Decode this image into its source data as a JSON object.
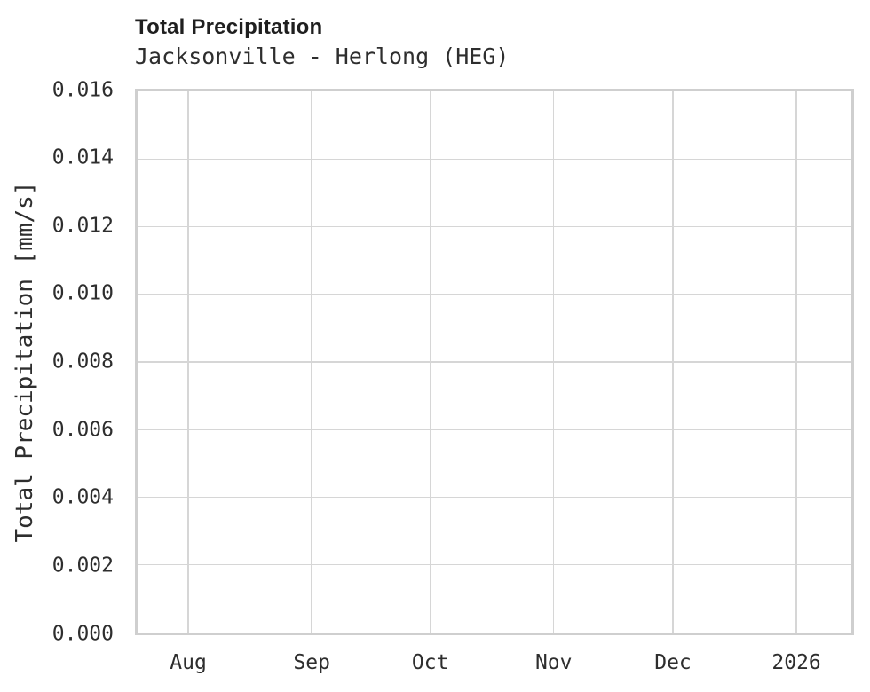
{
  "page": {
    "background": "#ffffff"
  },
  "colors": {
    "grid": "#d6d6d6",
    "axis_border": "#cfcfcf",
    "title_text": "#1f1f1f",
    "text": "#2e2e2e"
  },
  "chart_data": {
    "type": "line",
    "title": "Total Precipitation",
    "subtitle": "Jacksonville - Herlong (HEG)",
    "xlabel": "",
    "ylabel": "Total Precipitation [mm/s]",
    "ylim": [
      0.0,
      0.016
    ],
    "y_tick_step": 0.002,
    "y_ticks": [
      "0.016",
      "0.014",
      "0.012",
      "0.010",
      "0.008",
      "0.006",
      "0.004",
      "0.002",
      "0.000"
    ],
    "x_ticks": [
      {
        "label": "Aug",
        "pos": 0.071
      },
      {
        "label": "Sep",
        "pos": 0.244
      },
      {
        "label": "Oct",
        "pos": 0.41
      },
      {
        "label": "Nov",
        "pos": 0.583
      },
      {
        "label": "Dec",
        "pos": 0.75
      },
      {
        "label": "2026",
        "pos": 0.923
      }
    ],
    "grid": true,
    "legend_position": "none",
    "series": []
  }
}
